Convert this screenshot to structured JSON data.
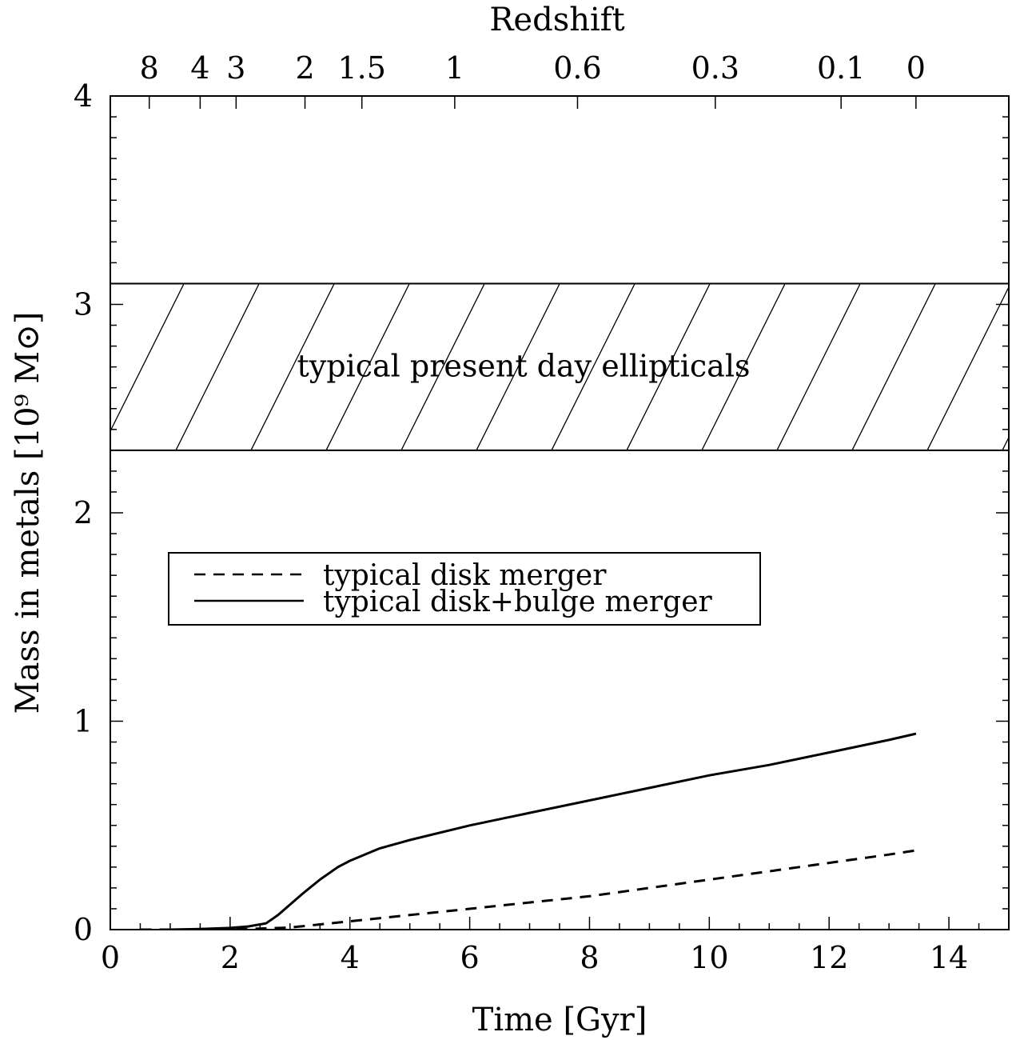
{
  "chart_data": {
    "type": "line",
    "title": "",
    "xlabel": "Time [Gyr]",
    "ylabel": "Mass in metals [10⁹ M⊙]",
    "top_axis_label": "Redshift",
    "xlim": [
      0,
      15
    ],
    "ylim": [
      0,
      4
    ],
    "x_ticks": [
      0,
      2,
      4,
      6,
      8,
      10,
      12,
      14
    ],
    "y_ticks": [
      0,
      1,
      2,
      3,
      4
    ],
    "top_ticks": [
      {
        "label": "8",
        "time": 0.65
      },
      {
        "label": "4",
        "time": 1.5
      },
      {
        "label": "3",
        "time": 2.1
      },
      {
        "label": "2",
        "time": 3.25
      },
      {
        "label": "1.5",
        "time": 4.2
      },
      {
        "label": "1",
        "time": 5.75
      },
      {
        "label": "0.6",
        "time": 7.8
      },
      {
        "label": "0.3",
        "time": 10.1
      },
      {
        "label": "0.1",
        "time": 12.2
      },
      {
        "label": "0",
        "time": 13.45
      }
    ],
    "band": {
      "label": "typical present day ellipticals",
      "y_range": [
        2.3,
        3.1
      ],
      "fill": "hatched"
    },
    "legend_position": "upper-left",
    "series": [
      {
        "name": "typical disk merger",
        "style": "dashed",
        "x": [
          0.5,
          1,
          1.5,
          2,
          2.5,
          3,
          3.5,
          4,
          5,
          6,
          7,
          8,
          9,
          10,
          11,
          12,
          13,
          13.45
        ],
        "y": [
          0,
          0,
          0,
          0,
          0.005,
          0.01,
          0.025,
          0.04,
          0.07,
          0.1,
          0.13,
          0.16,
          0.2,
          0.24,
          0.28,
          0.32,
          0.36,
          0.38
        ]
      },
      {
        "name": "typical disk+bulge merger",
        "style": "solid",
        "x": [
          1,
          1.5,
          2,
          2.3,
          2.6,
          2.8,
          3,
          3.2,
          3.5,
          3.8,
          4,
          4.5,
          5,
          6,
          7,
          8,
          9,
          10,
          11,
          12,
          13,
          13.45
        ],
        "y": [
          0,
          0.003,
          0.008,
          0.015,
          0.03,
          0.07,
          0.12,
          0.17,
          0.24,
          0.3,
          0.33,
          0.39,
          0.43,
          0.5,
          0.56,
          0.62,
          0.68,
          0.74,
          0.79,
          0.85,
          0.91,
          0.94
        ]
      }
    ]
  }
}
